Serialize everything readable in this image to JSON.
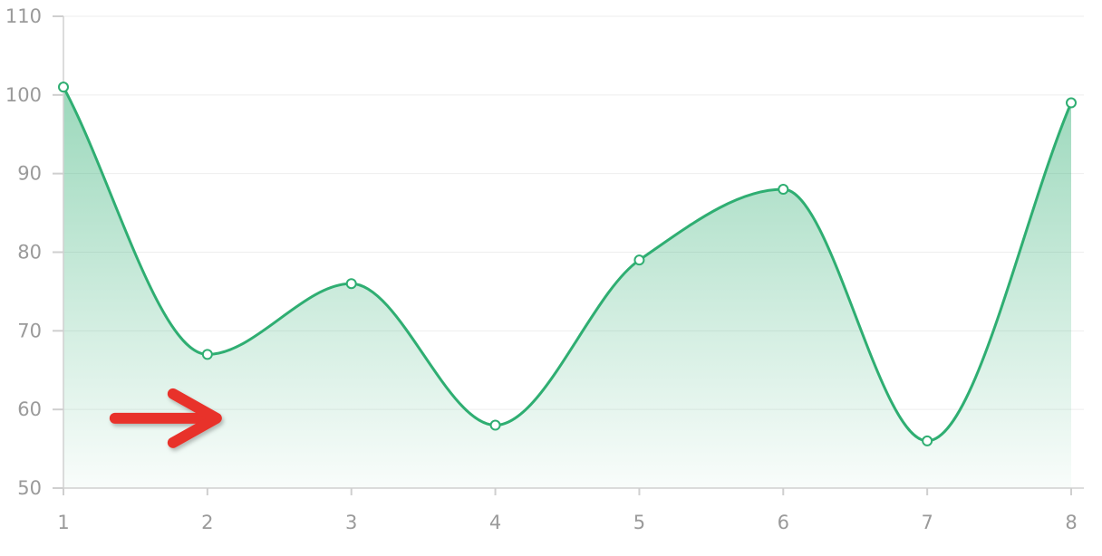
{
  "chart_data": {
    "type": "area",
    "title": "",
    "xlabel": "",
    "ylabel": "",
    "x": [
      1,
      2,
      3,
      4,
      5,
      6,
      7,
      8
    ],
    "series": [
      {
        "values": [
          101,
          67,
          76,
          58,
          79,
          88,
          56,
          99
        ],
        "color": "#2fae72"
      }
    ],
    "xlim": [
      1,
      8
    ],
    "ylim": [
      50,
      110
    ],
    "yticks": [
      50,
      60,
      70,
      80,
      90,
      100,
      110
    ],
    "xticks": [
      1,
      2,
      3,
      4,
      5,
      6,
      7,
      8
    ],
    "curve": "smooth",
    "fill": "gradient",
    "grid": "horizontal",
    "legend": "none",
    "annotation": {
      "type": "arrow",
      "color": "#e8302a",
      "pointing": "right",
      "near_x": 2,
      "near_y": 59
    }
  }
}
